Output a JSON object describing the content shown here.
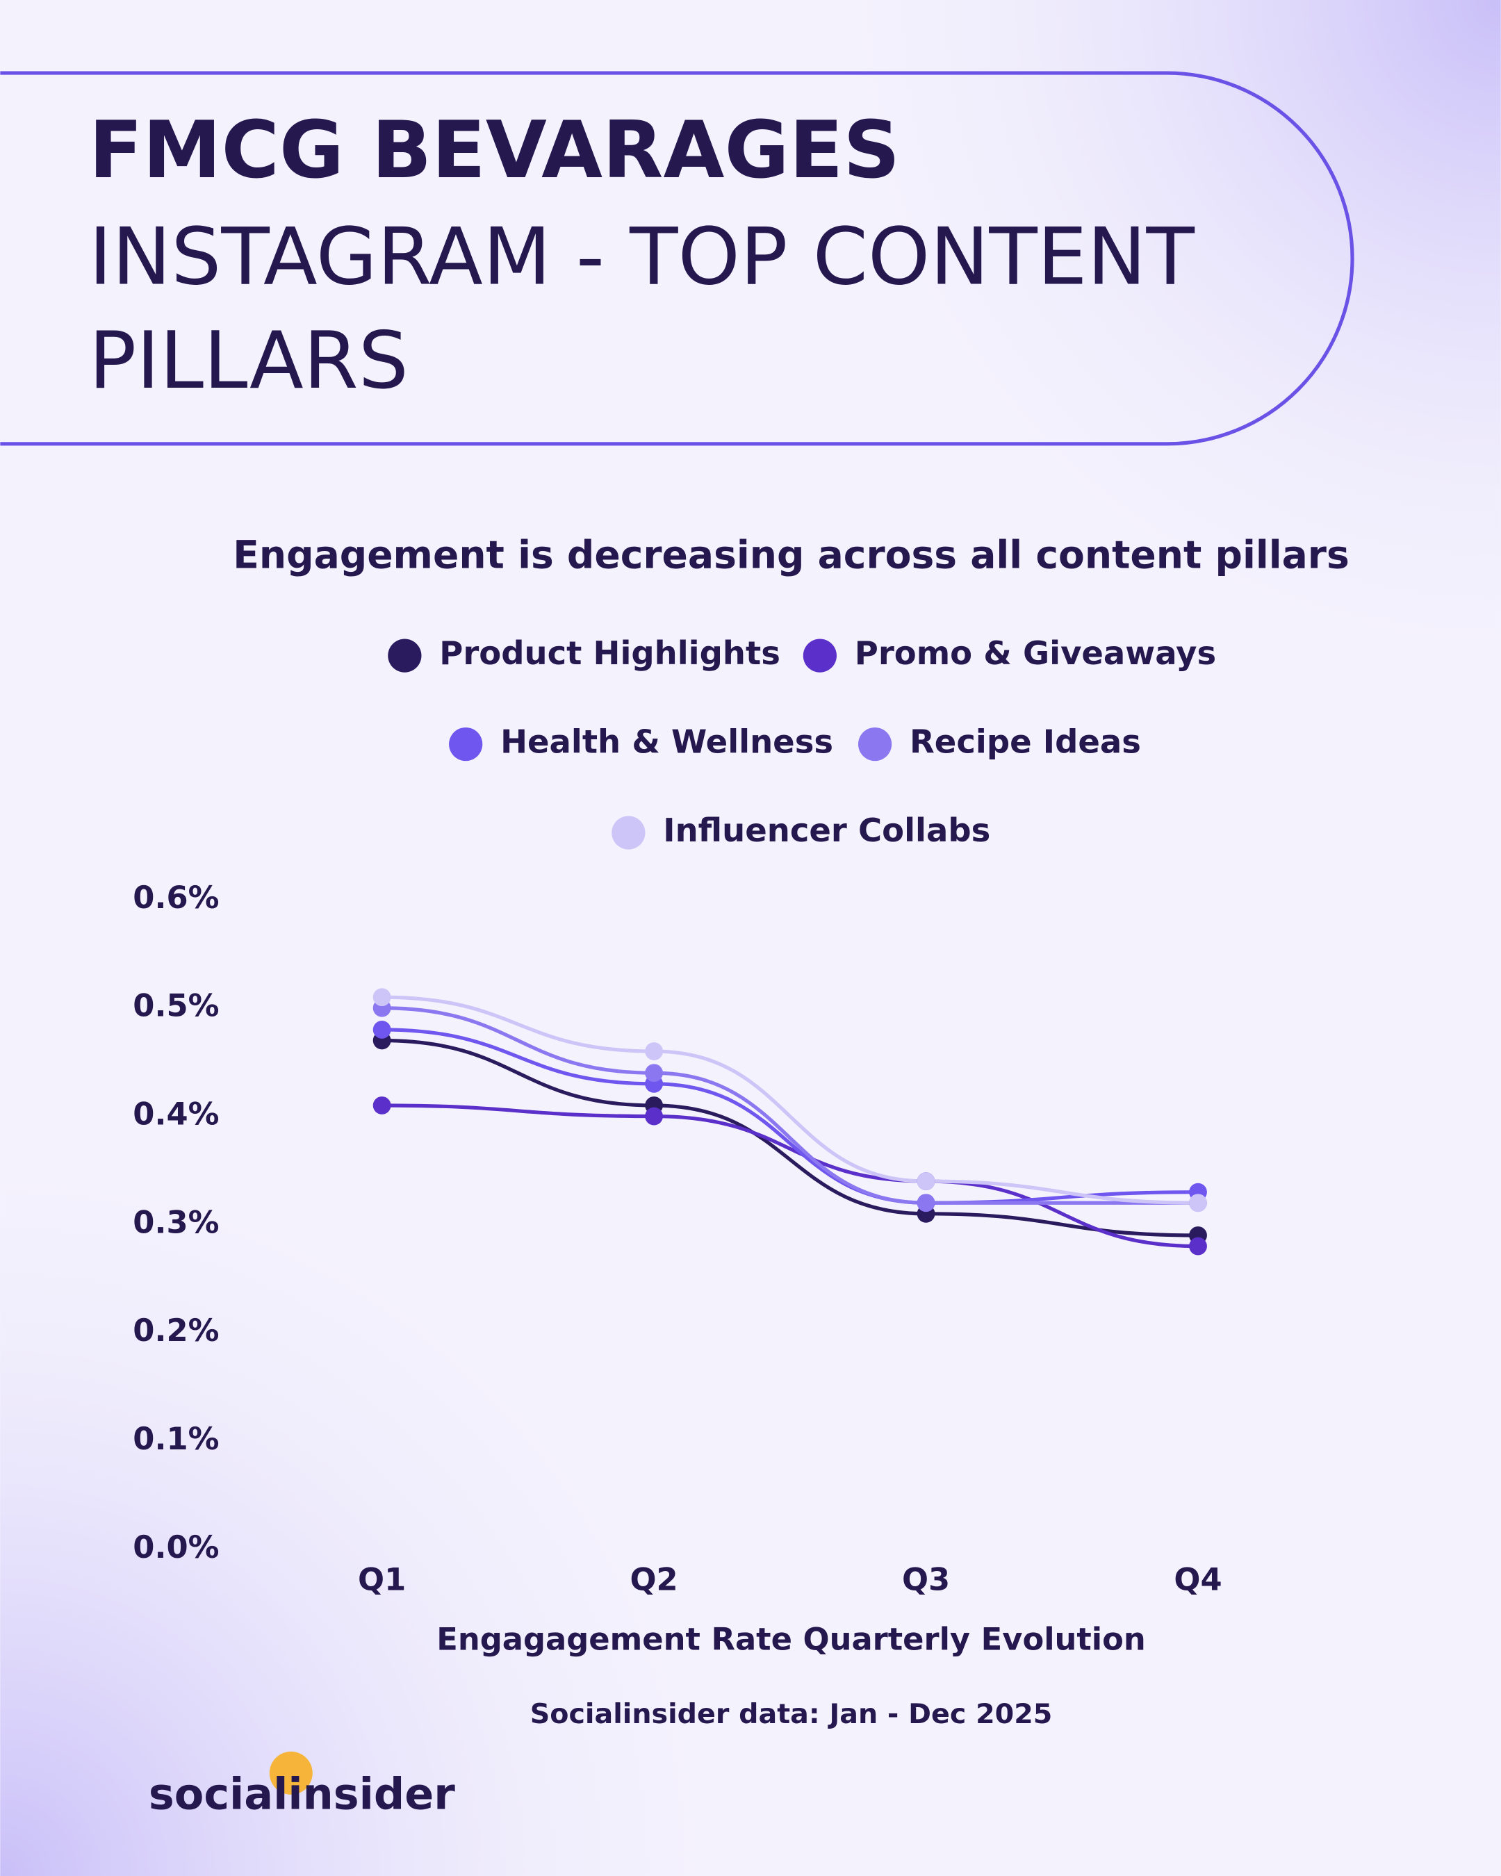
{
  "header": {
    "title": "FMCG BEVARAGES",
    "subtitle_lines": [
      "INSTAGRAM - TOP CONTENT",
      "PILLARS"
    ]
  },
  "chart_data": {
    "type": "line",
    "title": "Engagement is decreasing across all content pillars",
    "categories": [
      "Q1",
      "Q2",
      "Q3",
      "Q4"
    ],
    "series": [
      {
        "name": "Product Highlights",
        "color": "#2a1a5e",
        "values": [
          0.47,
          0.41,
          0.31,
          0.29
        ]
      },
      {
        "name": "Promo & Giveaways",
        "color": "#5b2fc9",
        "values": [
          0.41,
          0.4,
          0.34,
          0.28
        ]
      },
      {
        "name": "Health & Wellness",
        "color": "#6f56ee",
        "values": [
          0.48,
          0.43,
          0.32,
          0.33
        ]
      },
      {
        "name": "Recipe Ideas",
        "color": "#8b78f0",
        "values": [
          0.5,
          0.44,
          0.32,
          0.32
        ]
      },
      {
        "name": "Influencer Collabs",
        "color": "#cdc4f8",
        "values": [
          0.51,
          0.46,
          0.34,
          0.32
        ]
      }
    ],
    "ylim": [
      0,
      0.6
    ],
    "yticks": [
      {
        "value": 0,
        "label": "0.0%"
      },
      {
        "value": 0.1,
        "label": "0.1%"
      },
      {
        "value": 0.2,
        "label": "0.2%"
      },
      {
        "value": 0.3,
        "label": "0.3%"
      },
      {
        "value": 0.4,
        "label": "0.4%"
      },
      {
        "value": 0.5,
        "label": "0.5%"
      },
      {
        "value": 0.6,
        "label": "0.6%"
      }
    ],
    "xlabel": "Engagagement Rate Quarterly Evolution",
    "grid": false,
    "smooth": true
  },
  "footer": {
    "source": "Socialinsider data: Jan - Dec 2025",
    "logo": "socialinsider"
  }
}
